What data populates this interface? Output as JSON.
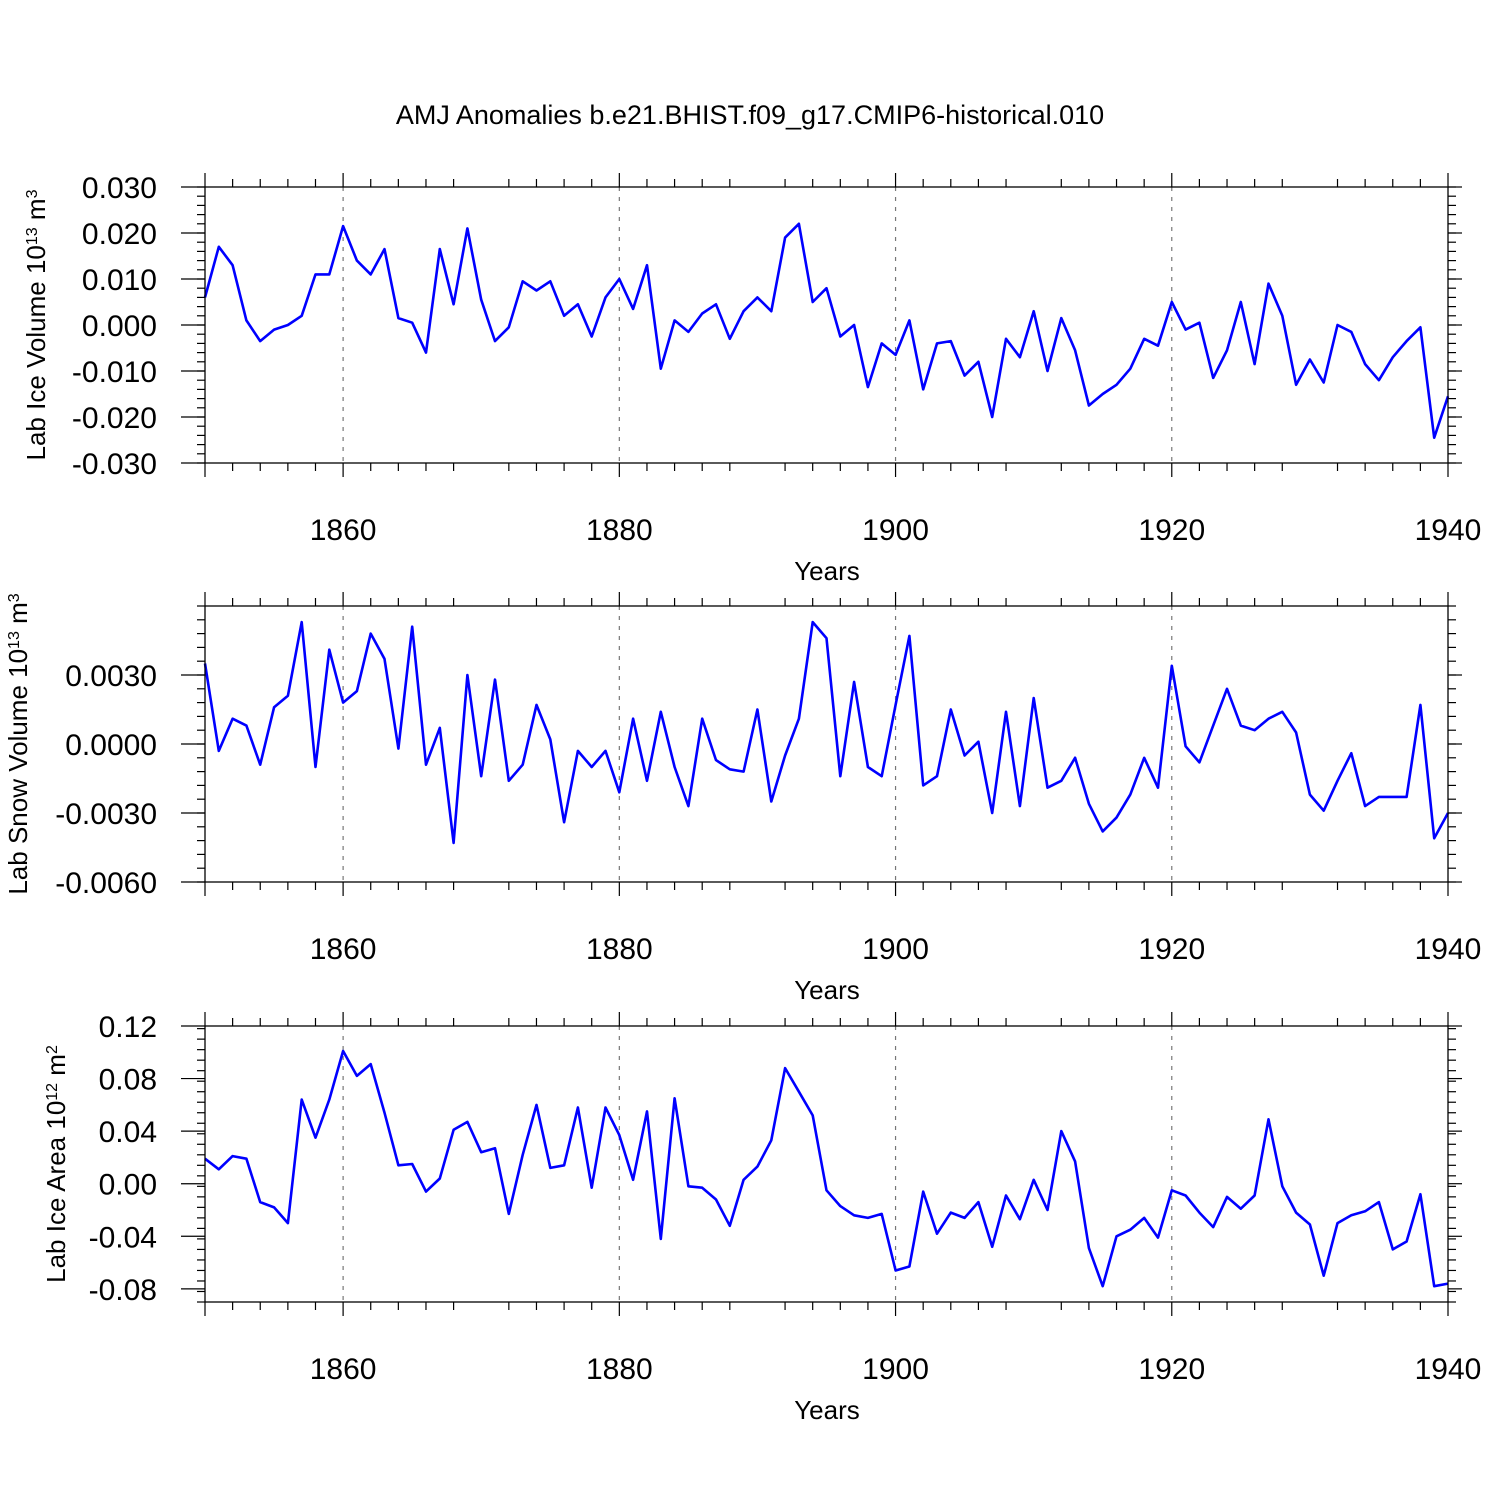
{
  "title": "AMJ Anomalies b.e21.BHIST.f09_g17.CMIP6-historical.010",
  "colors": {
    "line": "#0000ff",
    "axis": "#000000",
    "grid": "#777777"
  },
  "chart_data": [
    {
      "type": "line",
      "name": "lab-ice-volume",
      "ylabel_main": "Lab Ice Volume 10",
      "ylabel_exp": "13",
      "ylabel_unit": " m",
      "ylabel_unit_exp": "3",
      "xlabel": "Years",
      "xlim": [
        1850,
        1940
      ],
      "ylim": [
        -0.03,
        0.03
      ],
      "yticks": [
        -0.03,
        -0.02,
        -0.01,
        0.0,
        0.01,
        0.02,
        0.03
      ],
      "ytick_labels": [
        "-0.030",
        "-0.020",
        "-0.010",
        "0.000",
        "0.010",
        "0.020",
        "0.030"
      ],
      "xticks": [
        1860,
        1880,
        1900,
        1920,
        1940
      ],
      "xtick_labels": [
        "1860",
        "1880",
        "1900",
        "1920",
        "1940"
      ],
      "grid_x": [
        1860,
        1880,
        1900,
        1920
      ],
      "x": [
        1850,
        1851,
        1852,
        1853,
        1854,
        1855,
        1856,
        1857,
        1858,
        1859,
        1860,
        1861,
        1862,
        1863,
        1864,
        1865,
        1866,
        1867,
        1868,
        1869,
        1870,
        1871,
        1872,
        1873,
        1874,
        1875,
        1876,
        1877,
        1878,
        1879,
        1880,
        1881,
        1882,
        1883,
        1884,
        1885,
        1886,
        1887,
        1888,
        1889,
        1890,
        1891,
        1892,
        1893,
        1894,
        1895,
        1896,
        1897,
        1898,
        1899,
        1900,
        1901,
        1902,
        1903,
        1904,
        1905,
        1906,
        1907,
        1908,
        1909,
        1910,
        1911,
        1912,
        1913,
        1914,
        1915,
        1916,
        1917,
        1918,
        1919,
        1920,
        1921,
        1922,
        1923,
        1924,
        1925,
        1926,
        1927,
        1928,
        1929,
        1930,
        1931,
        1932,
        1933,
        1934,
        1935,
        1936,
        1937,
        1938,
        1939,
        1940
      ],
      "values": [
        0.006,
        0.017,
        0.013,
        0.001,
        -0.0035,
        -0.001,
        0.0,
        0.002,
        0.011,
        0.011,
        0.0215,
        0.014,
        0.011,
        0.0165,
        0.0015,
        0.0005,
        -0.006,
        0.0165,
        0.0045,
        0.021,
        0.0055,
        -0.0035,
        -0.0005,
        0.0095,
        0.0075,
        0.0095,
        0.002,
        0.0045,
        -0.0025,
        0.006,
        0.01,
        0.0035,
        0.013,
        -0.0095,
        0.001,
        -0.0015,
        0.0025,
        0.0045,
        -0.003,
        0.003,
        0.006,
        0.003,
        0.019,
        0.022,
        0.005,
        0.008,
        -0.0025,
        0.0,
        -0.0135,
        -0.004,
        -0.0065,
        0.001,
        -0.014,
        -0.004,
        -0.0035,
        -0.011,
        -0.008,
        -0.02,
        -0.003,
        -0.007,
        0.003,
        -0.01,
        0.0015,
        -0.0055,
        -0.0175,
        -0.015,
        -0.013,
        -0.0095,
        -0.003,
        -0.0045,
        0.005,
        -0.001,
        0.0005,
        -0.0115,
        -0.0055,
        0.005,
        -0.0085,
        0.009,
        0.002,
        -0.013,
        -0.0075,
        -0.0125,
        0.0,
        -0.0015,
        -0.0085,
        -0.012,
        -0.007,
        -0.0035,
        -0.0005,
        -0.0245,
        -0.0155
      ]
    },
    {
      "type": "line",
      "name": "lab-snow-volume",
      "ylabel_main": "Lab Snow Volume 10",
      "ylabel_exp": "13",
      "ylabel_unit": " m",
      "ylabel_unit_exp": "3",
      "xlabel": "Years",
      "xlim": [
        1850,
        1940
      ],
      "ylim": [
        -0.006,
        0.006
      ],
      "yticks": [
        -0.006,
        -0.003,
        0.0,
        0.003
      ],
      "ytick_labels": [
        "-0.0060",
        "-0.0030",
        "0.0000",
        "0.0030"
      ],
      "xticks": [
        1860,
        1880,
        1900,
        1920,
        1940
      ],
      "xtick_labels": [
        "1860",
        "1880",
        "1900",
        "1920",
        "1940"
      ],
      "grid_x": [
        1860,
        1880,
        1900,
        1920
      ],
      "x": [
        1850,
        1851,
        1852,
        1853,
        1854,
        1855,
        1856,
        1857,
        1858,
        1859,
        1860,
        1861,
        1862,
        1863,
        1864,
        1865,
        1866,
        1867,
        1868,
        1869,
        1870,
        1871,
        1872,
        1873,
        1874,
        1875,
        1876,
        1877,
        1878,
        1879,
        1880,
        1881,
        1882,
        1883,
        1884,
        1885,
        1886,
        1887,
        1888,
        1889,
        1890,
        1891,
        1892,
        1893,
        1894,
        1895,
        1896,
        1897,
        1898,
        1899,
        1900,
        1901,
        1902,
        1903,
        1904,
        1905,
        1906,
        1907,
        1908,
        1909,
        1910,
        1911,
        1912,
        1913,
        1914,
        1915,
        1916,
        1917,
        1918,
        1919,
        1920,
        1921,
        1922,
        1923,
        1924,
        1925,
        1926,
        1927,
        1928,
        1929,
        1930,
        1931,
        1932,
        1933,
        1934,
        1935,
        1936,
        1937,
        1938,
        1939,
        1940
      ],
      "values": [
        0.0035,
        -0.0003,
        0.0011,
        0.0008,
        -0.0009,
        0.0016,
        0.0021,
        0.0053,
        -0.001,
        0.0041,
        0.0018,
        0.0023,
        0.0048,
        0.0037,
        -0.0002,
        0.0051,
        -0.0009,
        0.0007,
        -0.0043,
        0.003,
        -0.0014,
        0.0028,
        -0.0016,
        -0.0009,
        0.0017,
        0.0002,
        -0.0034,
        -0.0003,
        -0.001,
        -0.0003,
        -0.0021,
        0.0011,
        -0.0016,
        0.0014,
        -0.001,
        -0.0027,
        0.0011,
        -0.0007,
        -0.0011,
        -0.0012,
        0.0015,
        -0.0025,
        -0.0005,
        0.0011,
        0.0053,
        0.0046,
        -0.0014,
        0.0027,
        -0.001,
        -0.0014,
        0.0017,
        0.0047,
        -0.0018,
        -0.0014,
        0.0015,
        -0.0005,
        0.0001,
        -0.003,
        0.0014,
        -0.0027,
        0.002,
        -0.0019,
        -0.0016,
        -0.0006,
        -0.0026,
        -0.0038,
        -0.0032,
        -0.0022,
        -0.0006,
        -0.0019,
        0.0034,
        -0.0001,
        -0.0008,
        0.0008,
        0.0024,
        0.0008,
        0.0006,
        0.0011,
        0.0014,
        0.0005,
        -0.0022,
        -0.0029,
        -0.0016,
        -0.0004,
        -0.0027,
        -0.0023,
        -0.0023,
        -0.0023,
        0.0017,
        -0.0041,
        -0.003
      ]
    },
    {
      "type": "line",
      "name": "lab-ice-area",
      "ylabel_main": "Lab Ice Area 10",
      "ylabel_exp": "12",
      "ylabel_unit": " m",
      "ylabel_unit_exp": "2",
      "xlabel": "Years",
      "xlim": [
        1850,
        1940
      ],
      "ylim": [
        -0.09,
        0.12
      ],
      "yticks": [
        -0.08,
        -0.04,
        0.0,
        0.04,
        0.08,
        0.12
      ],
      "ytick_labels": [
        "-0.08",
        "-0.04",
        "0.00",
        "0.04",
        "0.08",
        "0.12"
      ],
      "xticks": [
        1860,
        1880,
        1900,
        1920,
        1940
      ],
      "xtick_labels": [
        "1860",
        "1880",
        "1900",
        "1920",
        "1940"
      ],
      "grid_x": [
        1860,
        1880,
        1900,
        1920
      ],
      "x": [
        1850,
        1851,
        1852,
        1853,
        1854,
        1855,
        1856,
        1857,
        1858,
        1859,
        1860,
        1861,
        1862,
        1863,
        1864,
        1865,
        1866,
        1867,
        1868,
        1869,
        1870,
        1871,
        1872,
        1873,
        1874,
        1875,
        1876,
        1877,
        1878,
        1879,
        1880,
        1881,
        1882,
        1883,
        1884,
        1885,
        1886,
        1887,
        1888,
        1889,
        1890,
        1891,
        1892,
        1893,
        1894,
        1895,
        1896,
        1897,
        1898,
        1899,
        1900,
        1901,
        1902,
        1903,
        1904,
        1905,
        1906,
        1907,
        1908,
        1909,
        1910,
        1911,
        1912,
        1913,
        1914,
        1915,
        1916,
        1917,
        1918,
        1919,
        1920,
        1921,
        1922,
        1923,
        1924,
        1925,
        1926,
        1927,
        1928,
        1929,
        1930,
        1931,
        1932,
        1933,
        1934,
        1935,
        1936,
        1937,
        1938,
        1939,
        1940
      ],
      "values": [
        0.019,
        0.011,
        0.021,
        0.019,
        -0.014,
        -0.018,
        -0.03,
        0.064,
        0.035,
        0.064,
        0.101,
        0.082,
        0.091,
        0.054,
        0.014,
        0.015,
        -0.006,
        0.004,
        0.041,
        0.047,
        0.024,
        0.027,
        -0.023,
        0.022,
        0.06,
        0.012,
        0.014,
        0.058,
        -0.003,
        0.058,
        0.037,
        0.003,
        0.055,
        -0.042,
        0.065,
        -0.002,
        -0.003,
        -0.012,
        -0.032,
        0.003,
        0.013,
        0.033,
        0.088,
        0.07,
        0.052,
        -0.005,
        -0.017,
        -0.024,
        -0.026,
        -0.023,
        -0.066,
        -0.063,
        -0.006,
        -0.038,
        -0.022,
        -0.026,
        -0.014,
        -0.048,
        -0.009,
        -0.027,
        0.003,
        -0.02,
        0.04,
        0.017,
        -0.049,
        -0.078,
        -0.04,
        -0.035,
        -0.026,
        -0.041,
        -0.005,
        -0.009,
        -0.022,
        -0.033,
        -0.01,
        -0.019,
        -0.009,
        0.049,
        -0.002,
        -0.022,
        -0.031,
        -0.07,
        -0.03,
        -0.024,
        -0.021,
        -0.014,
        -0.05,
        -0.044,
        -0.008,
        -0.078,
        -0.076
      ]
    }
  ]
}
